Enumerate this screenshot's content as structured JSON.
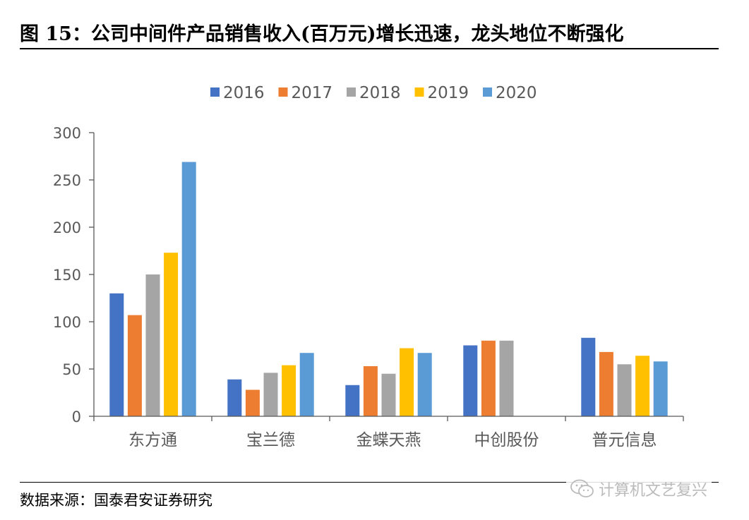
{
  "title": "图 15：公司中间件产品销售收入(百万元)增长迅速，龙头地位不断强化",
  "source": "数据来源：国泰君安证券研究",
  "watermark": {
    "icon": "wechat-icon",
    "text": "计算机文艺复兴"
  },
  "chart_data": {
    "type": "bar",
    "title": "",
    "xlabel": "",
    "ylabel": "",
    "ylim": [
      0,
      300
    ],
    "yticks": [
      0,
      50,
      100,
      150,
      200,
      250,
      300
    ],
    "ytick_labels": [
      "0",
      "50",
      "100",
      "150",
      "200",
      "250",
      "300"
    ],
    "categories": [
      "东方通",
      "宝兰德",
      "金蝶天燕",
      "中创股份",
      "普元信息"
    ],
    "legend_position": "top",
    "series": [
      {
        "name": "2016",
        "color": "#4472C4",
        "values": [
          130,
          39,
          33,
          75,
          83
        ]
      },
      {
        "name": "2017",
        "color": "#ED7D31",
        "values": [
          107,
          28,
          53,
          80,
          68
        ]
      },
      {
        "name": "2018",
        "color": "#A5A5A5",
        "values": [
          150,
          46,
          45,
          80,
          55
        ]
      },
      {
        "name": "2019",
        "color": "#FFC000",
        "values": [
          173,
          54,
          72,
          null,
          64
        ]
      },
      {
        "name": "2020",
        "color": "#5B9BD5",
        "values": [
          269,
          67,
          67,
          null,
          58
        ]
      }
    ]
  }
}
